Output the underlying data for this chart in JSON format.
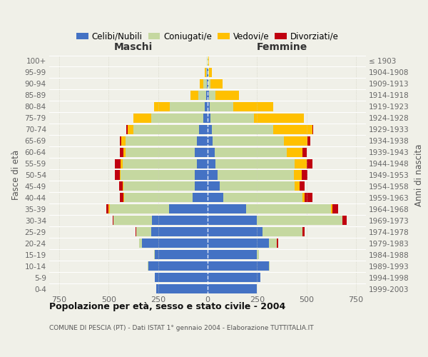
{
  "age_groups_bottom_to_top": [
    "0-4",
    "5-9",
    "10-14",
    "15-19",
    "20-24",
    "25-29",
    "30-34",
    "35-39",
    "40-44",
    "45-49",
    "50-54",
    "55-59",
    "60-64",
    "65-69",
    "70-74",
    "75-79",
    "80-84",
    "85-89",
    "90-94",
    "95-99",
    "100+"
  ],
  "birth_years_bottom_to_top": [
    "1999-2003",
    "1994-1998",
    "1989-1993",
    "1984-1988",
    "1979-1983",
    "1974-1978",
    "1969-1973",
    "1964-1968",
    "1959-1963",
    "1954-1958",
    "1949-1953",
    "1944-1948",
    "1939-1943",
    "1934-1938",
    "1929-1933",
    "1924-1928",
    "1919-1923",
    "1914-1918",
    "1909-1913",
    "1904-1908",
    "≤ 1903"
  ],
  "color_celibi": "#4472c4",
  "color_coniugati": "#c5d8a0",
  "color_vedovi": "#ffc000",
  "color_divorziati": "#c00010",
  "bg_color": "#f0f0e8",
  "xlim": 800,
  "maschi_celibi": [
    260,
    265,
    300,
    265,
    330,
    285,
    280,
    195,
    75,
    65,
    65,
    55,
    65,
    55,
    45,
    20,
    15,
    8,
    5,
    3,
    1
  ],
  "maschi_coniugati": [
    0,
    0,
    2,
    5,
    15,
    75,
    195,
    300,
    345,
    360,
    375,
    375,
    350,
    360,
    330,
    265,
    175,
    40,
    15,
    5,
    2
  ],
  "maschi_vedovi": [
    0,
    0,
    0,
    0,
    0,
    0,
    0,
    5,
    5,
    3,
    5,
    8,
    10,
    20,
    30,
    90,
    80,
    40,
    20,
    5,
    2
  ],
  "maschi_divorziati": [
    0,
    0,
    0,
    0,
    0,
    5,
    5,
    10,
    20,
    20,
    25,
    30,
    20,
    10,
    5,
    0,
    0,
    0,
    0,
    0,
    0
  ],
  "femmine_celibi": [
    250,
    268,
    310,
    250,
    310,
    278,
    250,
    195,
    80,
    60,
    50,
    40,
    35,
    25,
    20,
    15,
    10,
    8,
    5,
    3,
    1
  ],
  "femmine_coniugati": [
    0,
    0,
    2,
    10,
    40,
    200,
    430,
    430,
    400,
    380,
    385,
    400,
    365,
    360,
    310,
    220,
    120,
    30,
    10,
    5,
    2
  ],
  "femmine_vedovi": [
    0,
    0,
    0,
    0,
    0,
    1,
    2,
    5,
    10,
    25,
    40,
    60,
    80,
    120,
    200,
    250,
    200,
    120,
    60,
    15,
    5
  ],
  "femmine_divorziati": [
    0,
    0,
    0,
    0,
    5,
    10,
    20,
    30,
    40,
    25,
    30,
    30,
    20,
    15,
    5,
    0,
    0,
    0,
    0,
    0,
    0
  ],
  "title": "Popolazione per età, sesso e stato civile - 2004",
  "subtitle": "COMUNE DI PESCIA (PT) - Dati ISTAT 1° gennaio 2004 - Elaborazione TUTTITALIA.IT",
  "ylabel_left": "Fasce di età",
  "ylabel_right": "Anni di nascita",
  "label_maschi": "Maschi",
  "label_femmine": "Femmine",
  "legend_labels": [
    "Celibi/Nubili",
    "Coniugati/e",
    "Vedovi/e",
    "Divorziati/e"
  ]
}
